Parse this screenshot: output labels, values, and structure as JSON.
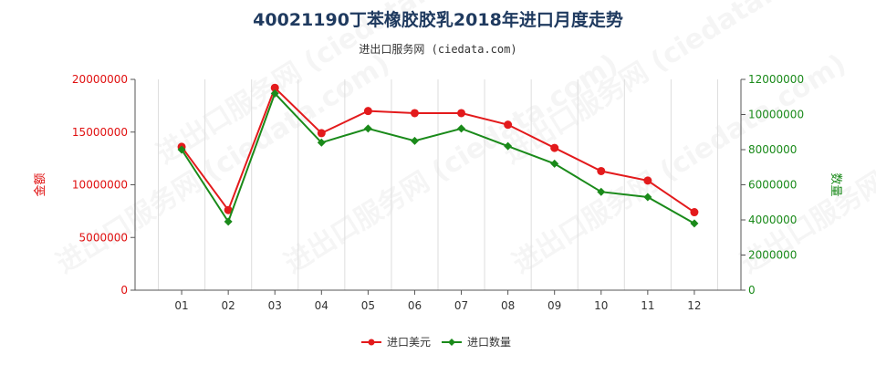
{
  "chart_data": {
    "type": "line",
    "title": "40021190丁苯橡胶胶乳2018年进口月度走势",
    "subtitle": "进出口服务网 (ciedata.com)",
    "watermark": "进出口服务网 (ciedata.com)",
    "categories": [
      "01",
      "02",
      "03",
      "04",
      "05",
      "06",
      "07",
      "08",
      "09",
      "10",
      "11",
      "12"
    ],
    "y_left": {
      "label": "金额",
      "min": 0,
      "max": 20000000,
      "ticks": [
        "0",
        "5000000",
        "10000000",
        "15000000",
        "20000000"
      ],
      "color": "#e01010"
    },
    "y_right": {
      "label": "数量",
      "min": 0,
      "max": 12000000,
      "ticks": [
        "0",
        "2000000",
        "4000000",
        "6000000",
        "8000000",
        "10000000",
        "12000000"
      ],
      "color": "#1a8a1a"
    },
    "series": [
      {
        "name": "进口美元",
        "axis": "left",
        "color": "#e31a1c",
        "marker": "circle",
        "values": [
          13600000,
          7600000,
          19200000,
          14900000,
          17000000,
          16800000,
          16800000,
          15700000,
          13500000,
          11300000,
          10400000,
          7400000
        ]
      },
      {
        "name": "进口数量",
        "axis": "right",
        "color": "#1a8a1a",
        "marker": "diamond",
        "values": [
          8000000,
          3900000,
          11200000,
          8400000,
          9200000,
          8500000,
          9200000,
          8200000,
          7200000,
          5600000,
          5300000,
          3800000
        ]
      }
    ],
    "grid": "vertical",
    "legend_position": "bottom"
  }
}
